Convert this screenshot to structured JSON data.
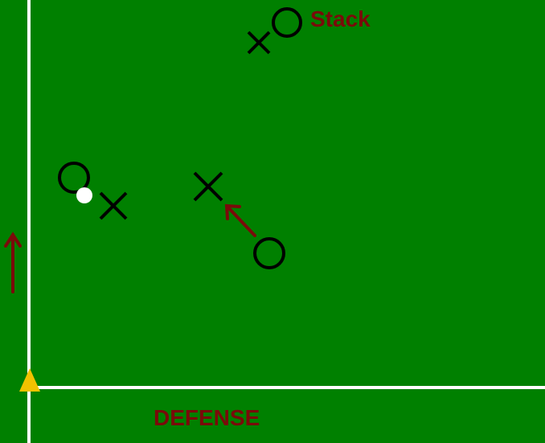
{
  "diagram": {
    "labels": {
      "stack": "Stack",
      "defense": "DEFENSE"
    },
    "colors": {
      "field": "#008000",
      "line": "#ffffff",
      "marker": "#000000",
      "accent": "#7a0a0a",
      "cone": "#f2c200",
      "disc": "#ffffff"
    },
    "players": {
      "offense_count": 3,
      "defense_count": 3
    }
  }
}
